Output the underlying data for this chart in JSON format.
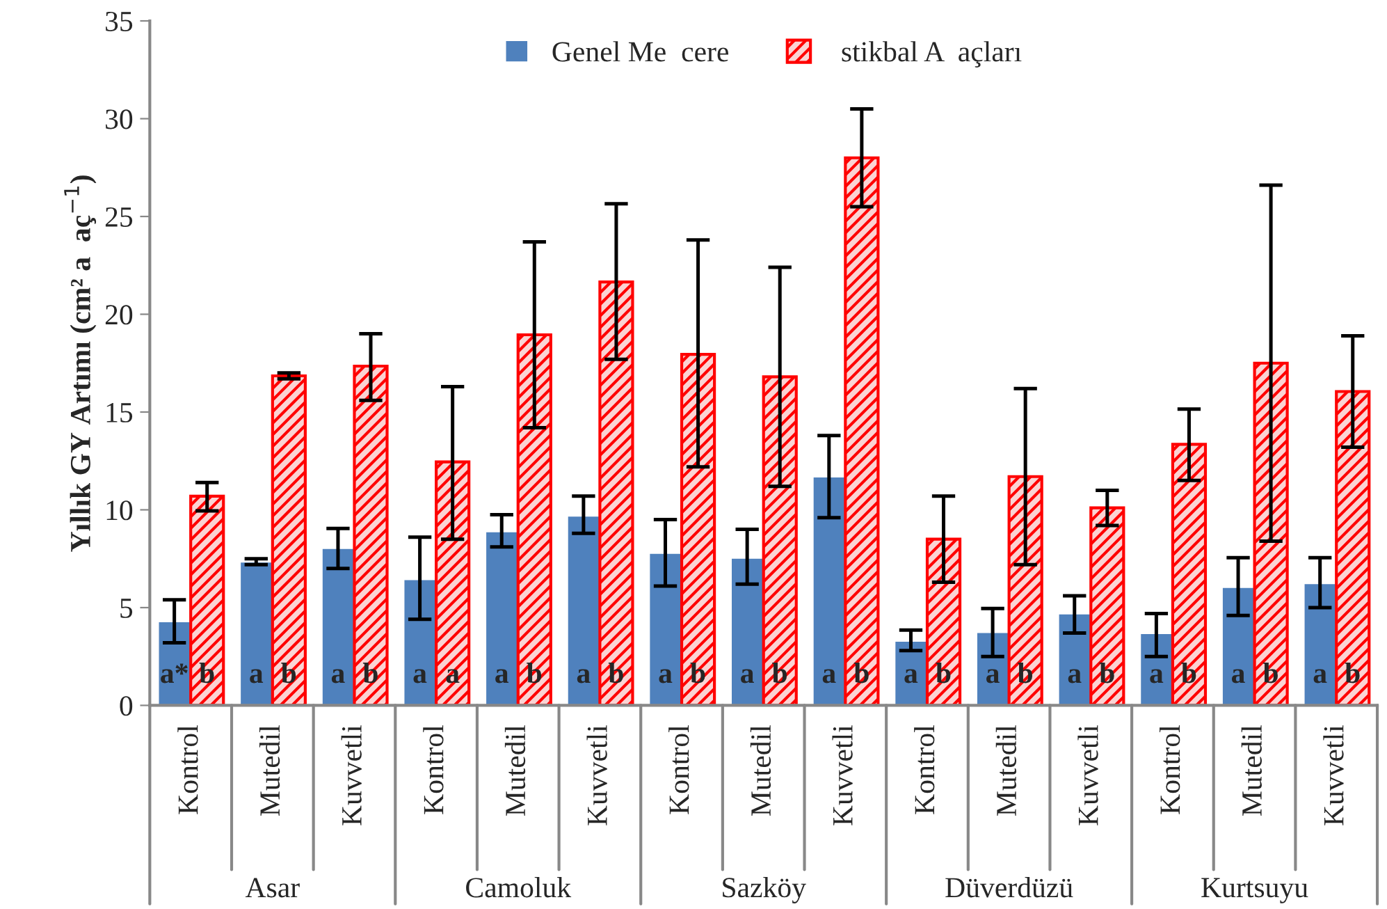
{
  "chart_data": {
    "type": "bar",
    "ylabel": "Yıllık GY Artımı (cm² a  aç$^{−1}$)",
    "categories": [
      "Kontrol",
      "Mutedil",
      "Kuvvetli",
      "Kontrol",
      "Mutedil",
      "Kuvvetli",
      "Kontrol",
      "Mutedil",
      "Kuvvetli",
      "Kontrol",
      "Mutedil",
      "Kuvvetli",
      "Kontrol",
      "Mutedil",
      "Kuvvetli"
    ],
    "annotations": [
      "Asar",
      "Camoluk",
      "Sazköy",
      "Düverdüzü",
      "Kurtsuyu"
    ],
    "series": [
      {
        "name": "Genel Me  cere",
        "color": "#4f81bd",
        "values": [
          4.3,
          7.35,
          8.05,
          6.45,
          8.9,
          9.7,
          7.8,
          7.55,
          11.7,
          3.3,
          3.75,
          4.7,
          3.7,
          6.05,
          6.25
        ],
        "errors": [
          [
            3.2,
            5.4
          ],
          [
            7.2,
            7.5
          ],
          [
            7.0,
            9.05
          ],
          [
            4.4,
            8.6
          ],
          [
            8.1,
            9.75
          ],
          [
            8.8,
            10.7
          ],
          [
            6.1,
            9.5
          ],
          [
            6.2,
            9.0
          ],
          [
            9.6,
            13.8
          ],
          [
            2.8,
            3.85
          ],
          [
            2.5,
            4.95
          ],
          [
            3.7,
            5.6
          ],
          [
            2.5,
            4.7
          ],
          [
            4.6,
            7.55
          ],
          [
            5.0,
            7.55
          ]
        ],
        "value_labels": [
          "a*",
          "a",
          "a",
          "a",
          "a",
          "a",
          "a",
          "a",
          "a",
          "a",
          "a",
          "a",
          "a",
          "a",
          "a"
        ]
      },
      {
        "name": " stikbal A  açları",
        "color": "#ff0000",
        "values": [
          10.7,
          16.85,
          17.35,
          12.45,
          18.95,
          21.65,
          17.95,
          16.8,
          28.0,
          8.5,
          11.7,
          10.1,
          13.35,
          17.5,
          16.05
        ],
        "errors": [
          [
            9.95,
            11.4
          ],
          [
            16.7,
            17.0
          ],
          [
            15.6,
            19.0
          ],
          [
            8.5,
            16.3
          ],
          [
            14.2,
            23.7
          ],
          [
            17.7,
            25.65
          ],
          [
            12.2,
            23.8
          ],
          [
            11.2,
            22.4
          ],
          [
            25.5,
            30.5
          ],
          [
            6.3,
            10.7
          ],
          [
            7.2,
            16.2
          ],
          [
            9.2,
            11.0
          ],
          [
            11.5,
            15.15
          ],
          [
            8.4,
            26.6
          ],
          [
            13.2,
            18.9
          ]
        ],
        "value_labels": [
          "b",
          "b",
          "b",
          "a",
          "b",
          "b",
          "b",
          "b",
          "b",
          "b",
          "b",
          "b",
          "b",
          "b",
          "b"
        ]
      }
    ],
    "ylim": [
      0,
      35
    ],
    "yticks": [
      0,
      5,
      10,
      15,
      20,
      25,
      30,
      35
    ],
    "grid": false,
    "legend": "top"
  }
}
